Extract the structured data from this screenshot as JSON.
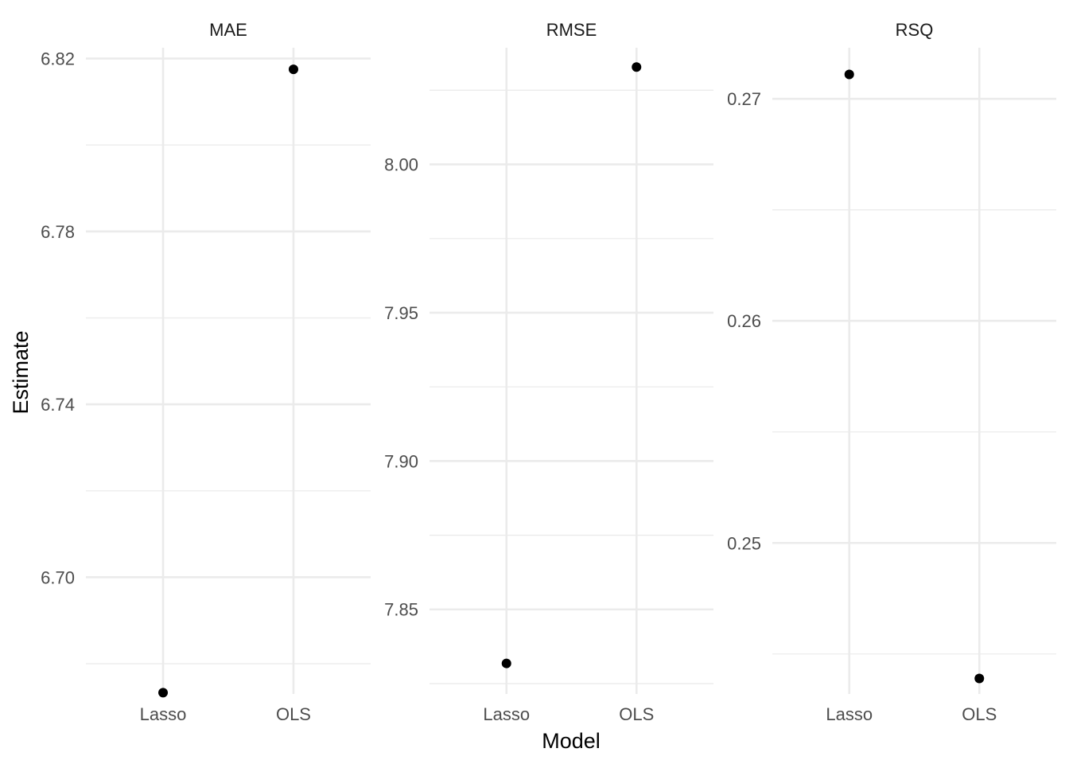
{
  "chart_data": {
    "type": "scatter",
    "xlabel": "Model",
    "ylabel": "Estimate",
    "categories": [
      "Lasso",
      "OLS"
    ],
    "facets": [
      {
        "title": "MAE",
        "ylim": [
          6.673,
          6.8225
        ],
        "yticks": [
          6.7,
          6.74,
          6.78,
          6.82
        ],
        "ytick_labels": [
          "6.70",
          "6.74",
          "6.78",
          "6.82"
        ],
        "minor_ticks": [
          6.68,
          6.72,
          6.76,
          6.8
        ],
        "values": [
          6.6733,
          6.8175
        ]
      },
      {
        "title": "RMSE",
        "ylim": [
          7.8215,
          8.0393
        ],
        "yticks": [
          7.85,
          7.9,
          7.95,
          8.0
        ],
        "ytick_labels": [
          "7.85",
          "7.90",
          "7.95",
          "8.00"
        ],
        "minor_ticks": [
          7.825,
          7.875,
          7.925,
          7.975,
          8.025
        ],
        "values": [
          7.8318,
          8.0328
        ]
      },
      {
        "title": "RSQ",
        "ylim": [
          0.2432,
          0.2723
        ],
        "yticks": [
          0.25,
          0.26,
          0.27
        ],
        "ytick_labels": [
          "0.25",
          "0.26",
          "0.27"
        ],
        "minor_ticks": [
          0.245,
          0.255,
          0.265
        ],
        "values": [
          0.2711,
          0.2439
        ]
      }
    ]
  }
}
